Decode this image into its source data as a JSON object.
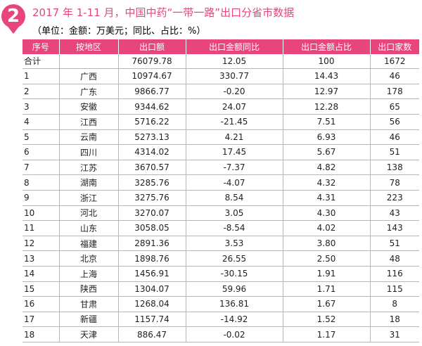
{
  "badge": {
    "number": "2"
  },
  "title": "2017 年 1-11 月，中国中药“一带一路”出口分省市数据",
  "unit_note": "（单位：金额：万美元；同比、占比：%）",
  "colors": {
    "accent": "#e8467a",
    "border": "#b7b7b7"
  },
  "table": {
    "headers": [
      "序号",
      "按地区",
      "出口额",
      "出口金额同比",
      "出口金额占比",
      "出口家数"
    ],
    "rows": [
      {
        "seq": "合计",
        "region": "",
        "amount": "76079.78",
        "yoy": "12.05",
        "share": "100",
        "count": "1672"
      },
      {
        "seq": "1",
        "region": "广西",
        "amount": "10974.67",
        "yoy": "330.77",
        "share": "14.43",
        "count": "46"
      },
      {
        "seq": "2",
        "region": "广东",
        "amount": "9866.77",
        "yoy": "-0.20",
        "share": "12.97",
        "count": "178"
      },
      {
        "seq": "3",
        "region": "安徽",
        "amount": "9344.62",
        "yoy": "24.07",
        "share": "12.28",
        "count": "65"
      },
      {
        "seq": "4",
        "region": "江西",
        "amount": "5716.22",
        "yoy": "-21.45",
        "share": "7.51",
        "count": "56"
      },
      {
        "seq": "5",
        "region": "云南",
        "amount": "5273.13",
        "yoy": "4.21",
        "share": "6.93",
        "count": "46"
      },
      {
        "seq": "6",
        "region": "四川",
        "amount": "4314.02",
        "yoy": "17.45",
        "share": "5.67",
        "count": "51"
      },
      {
        "seq": "7",
        "region": "江苏",
        "amount": "3670.57",
        "yoy": "-7.37",
        "share": "4.82",
        "count": "138"
      },
      {
        "seq": "8",
        "region": "湖南",
        "amount": "3285.76",
        "yoy": "-4.07",
        "share": "4.32",
        "count": "78"
      },
      {
        "seq": "9",
        "region": "浙江",
        "amount": "3275.76",
        "yoy": "8.54",
        "share": "4.31",
        "count": "223"
      },
      {
        "seq": "10",
        "region": "河北",
        "amount": "3270.07",
        "yoy": "3.05",
        "share": "4.30",
        "count": "43"
      },
      {
        "seq": "11",
        "region": "山东",
        "amount": "3058.05",
        "yoy": "-8.54",
        "share": "4.02",
        "count": "143"
      },
      {
        "seq": "12",
        "region": "福建",
        "amount": "2891.36",
        "yoy": "3.53",
        "share": "3.80",
        "count": "51"
      },
      {
        "seq": "13",
        "region": "北京",
        "amount": "1898.76",
        "yoy": "26.55",
        "share": "2.50",
        "count": "48"
      },
      {
        "seq": "14",
        "region": "上海",
        "amount": "1456.91",
        "yoy": "-30.15",
        "share": "1.91",
        "count": "116"
      },
      {
        "seq": "15",
        "region": "陕西",
        "amount": "1304.07",
        "yoy": "59.96",
        "share": "1.71",
        "count": "115"
      },
      {
        "seq": "16",
        "region": "甘肃",
        "amount": "1268.04",
        "yoy": "136.81",
        "share": "1.67",
        "count": "8"
      },
      {
        "seq": "17",
        "region": "新疆",
        "amount": "1157.74",
        "yoy": "-14.92",
        "share": "1.52",
        "count": "18"
      },
      {
        "seq": "18",
        "region": "天津",
        "amount": "886.47",
        "yoy": "-0.02",
        "share": "1.17",
        "count": "31"
      }
    ]
  }
}
